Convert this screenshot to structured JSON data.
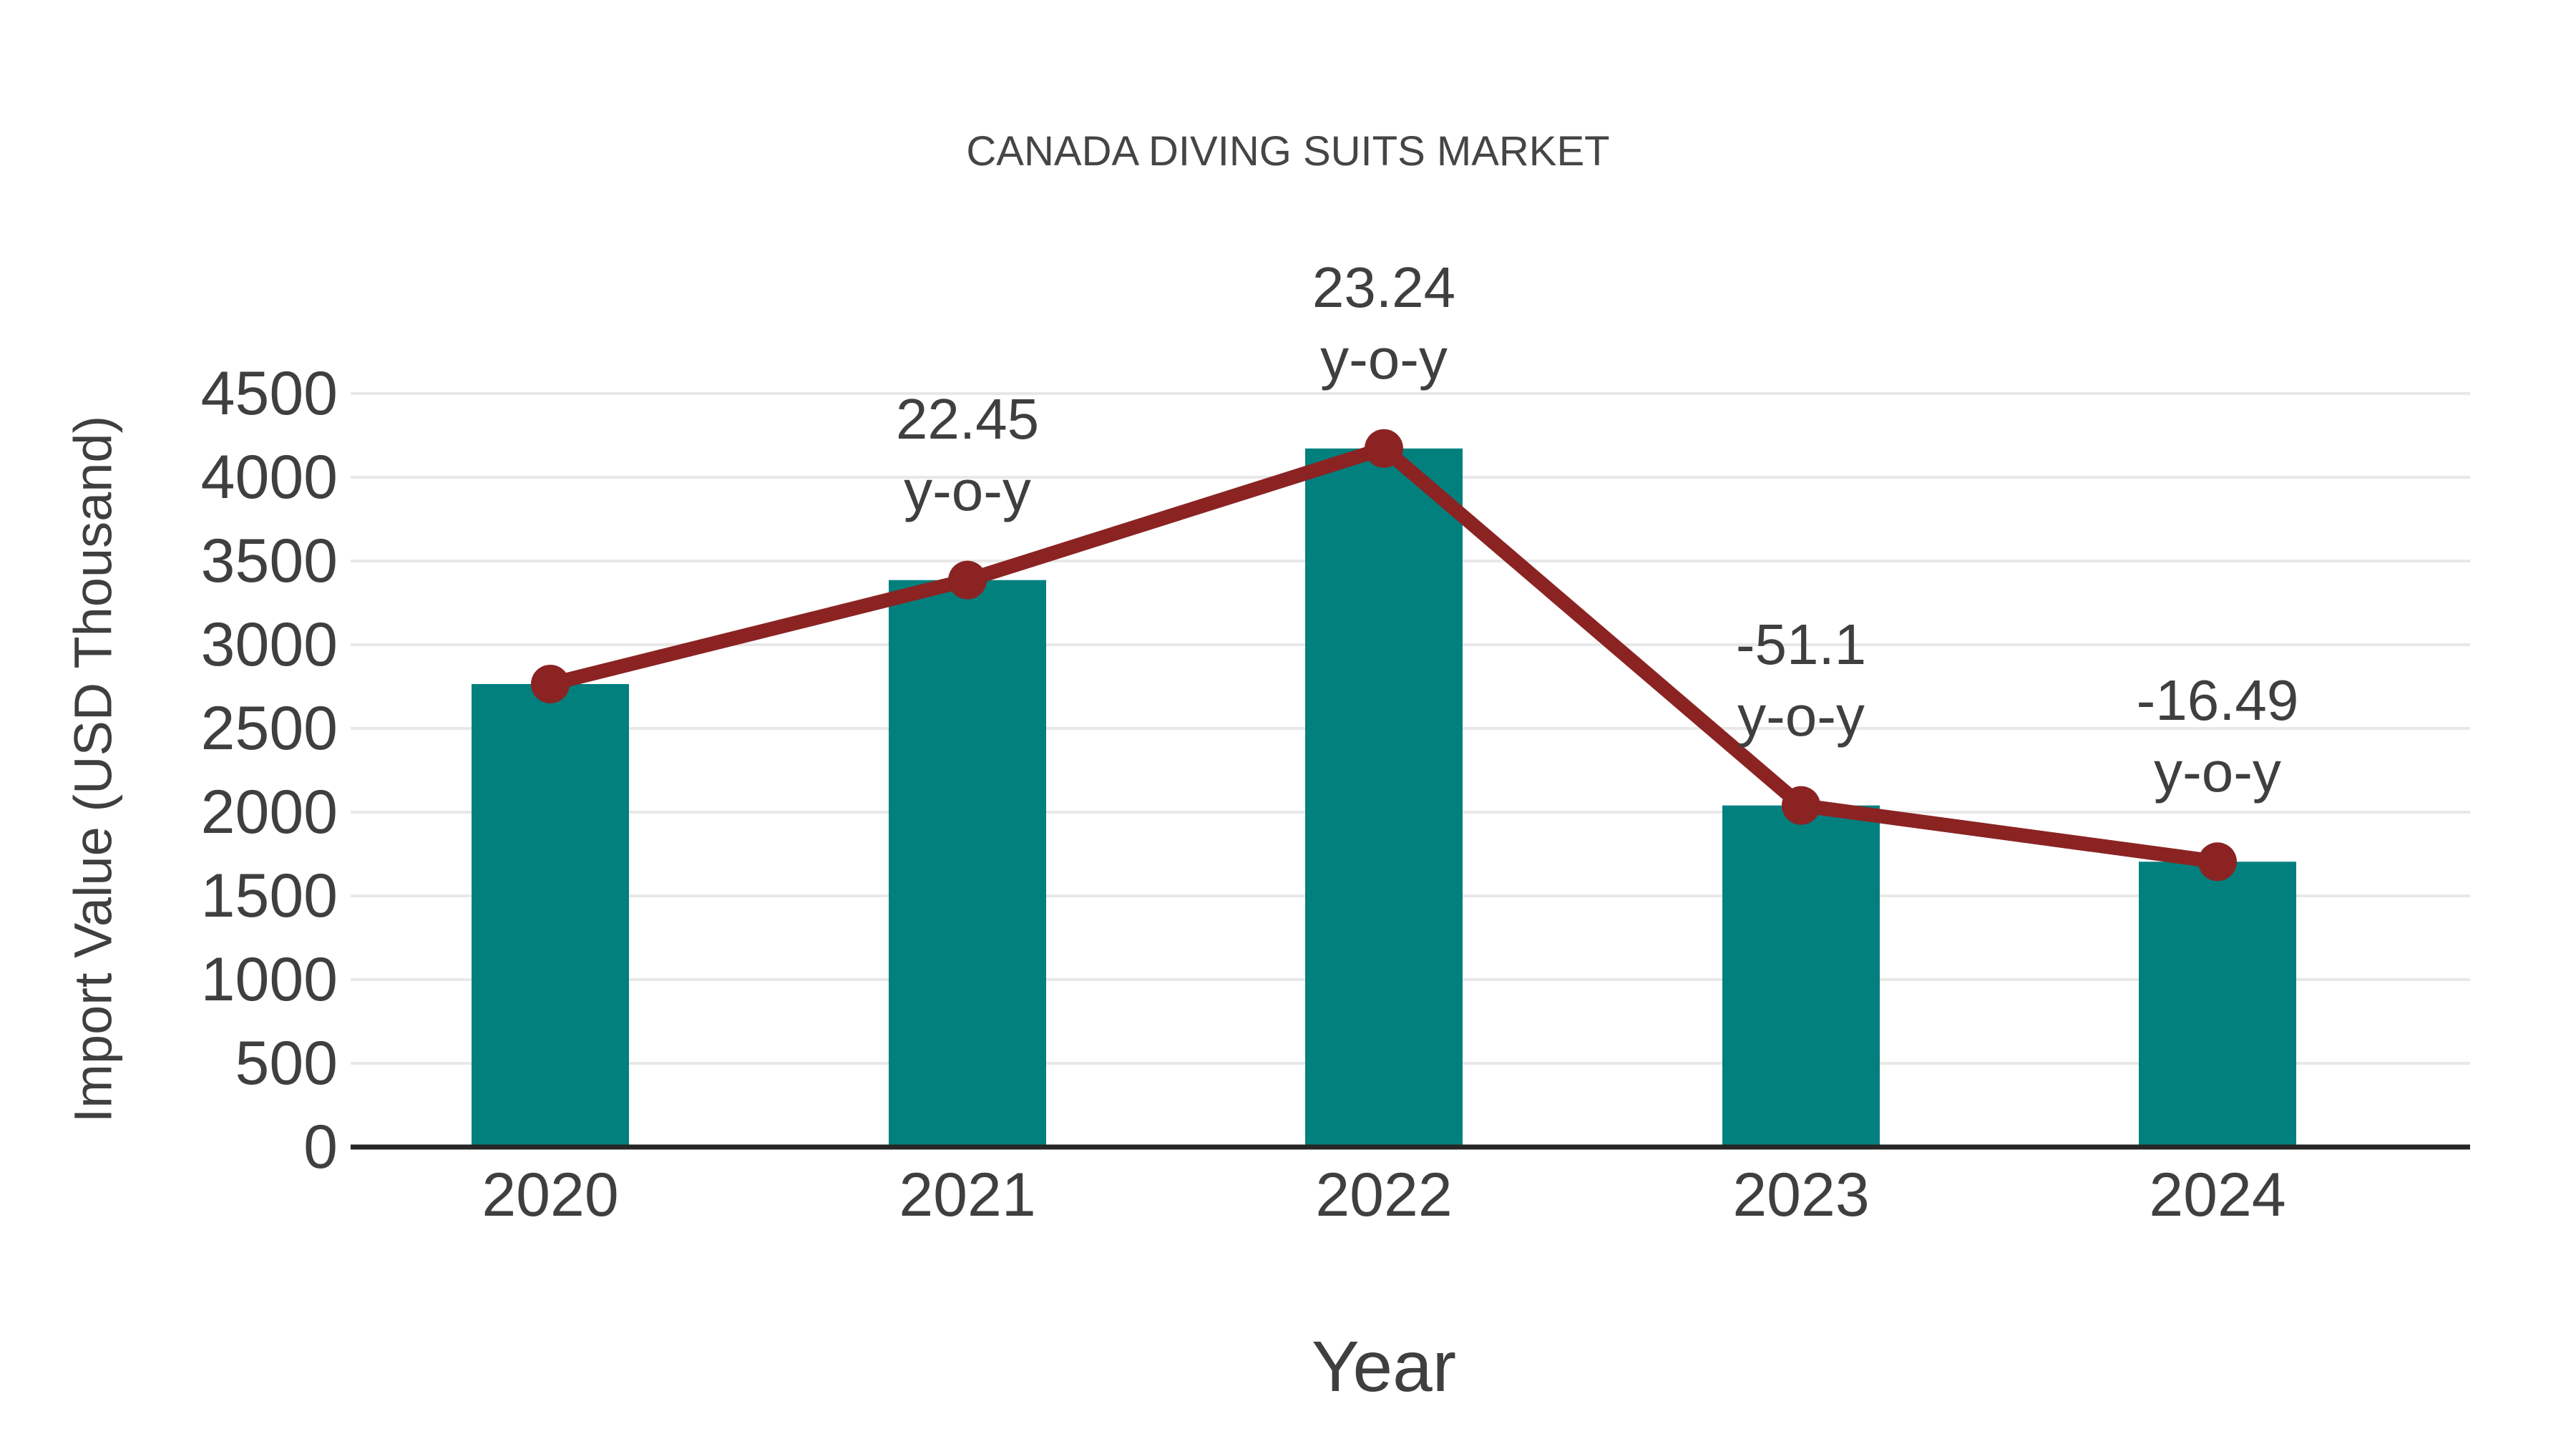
{
  "page": {
    "background": "#FFFFFF"
  },
  "chart_data": {
    "type": "bar+line",
    "title": "CANADA DIVING SUITS MARKET",
    "xlabel": "Year",
    "ylabel": "Import Value (USD Thousand)",
    "categories": [
      "2020",
      "2021",
      "2022",
      "2023",
      "2024"
    ],
    "series": [
      {
        "name": "Import Value (USD Thousand)",
        "type": "bar",
        "color": "#01807E",
        "values": [
          2765,
          3386,
          4172,
          2040,
          1704
        ]
      },
      {
        "name": "y-o-y growth",
        "type": "line",
        "color": "#8B2323",
        "values": [
          2765,
          3386,
          4172,
          2040,
          1704
        ]
      }
    ],
    "annotations": [
      {
        "category": "2021",
        "value": "22.45",
        "suffix": "y-o-y"
      },
      {
        "category": "2022",
        "value": "23.24",
        "suffix": "y-o-y"
      },
      {
        "category": "2023",
        "value": "-51.1",
        "suffix": "y-o-y"
      },
      {
        "category": "2024",
        "value": "-16.49",
        "suffix": "y-o-y"
      }
    ],
    "ylim": [
      0,
      4500
    ],
    "ytick_step": 500,
    "yticks": [
      "0",
      "500",
      "1000",
      "1500",
      "2000",
      "2500",
      "3000",
      "3500",
      "4000",
      "4500"
    ],
    "grid": "horizontal",
    "legend": "none",
    "colors": {
      "grid": "#E8E8E8",
      "axis": "#262626",
      "text": "#3F3F3F"
    }
  }
}
